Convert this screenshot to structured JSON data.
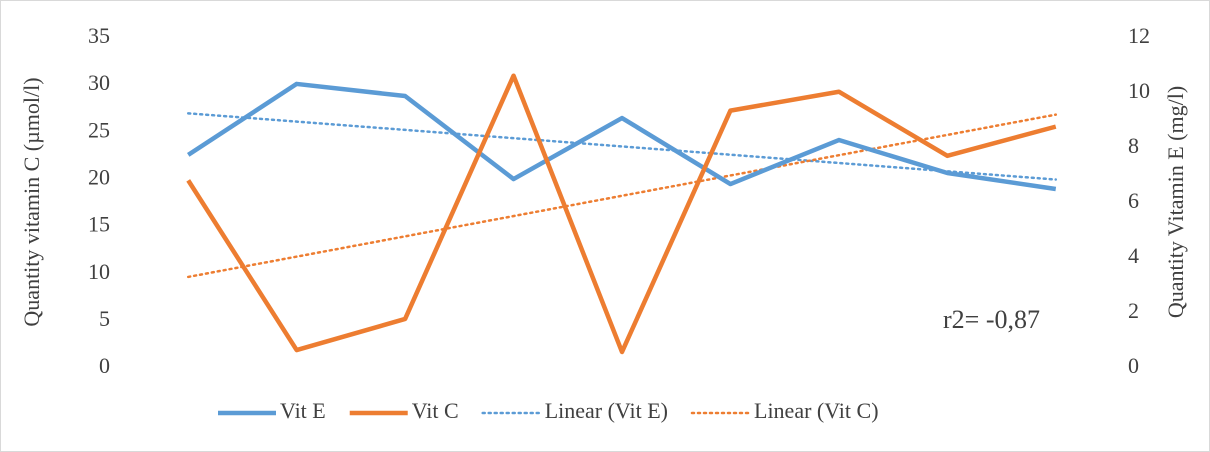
{
  "chart_data": {
    "type": "line",
    "annotation": "r2= -0,87",
    "ylabel": "Quantity  vitamin C (µmol/l)",
    "y2label": "Quantity   Vitamin E (mg/l)",
    "categories": [
      null,
      null,
      null,
      null,
      null,
      null,
      null,
      null,
      null
    ],
    "series": [
      {
        "name": "Vit E",
        "color": "#5b9bd5",
        "axis": "y2",
        "trendline": "Linear (Vit E)",
        "values": [
          7.75,
          10.33,
          9.89,
          6.87,
          9.09,
          6.69,
          8.29,
          7.09,
          6.51
        ]
      },
      {
        "name": "Vit C",
        "color": "#ed7d31",
        "trendline": "Linear (Vit C)",
        "values": [
          19.9,
          1.9,
          5.2,
          31.0,
          1.7,
          27.3,
          29.3,
          22.5,
          25.6
        ]
      }
    ],
    "ylim": [
      0,
      35
    ],
    "yticks": [
      0,
      5,
      10,
      15,
      20,
      25,
      30,
      35
    ],
    "y2lim": [
      0,
      12
    ],
    "y2ticks": [
      0,
      2,
      4,
      6,
      8,
      10,
      12
    ],
    "grid": false,
    "legend": "bottom"
  }
}
